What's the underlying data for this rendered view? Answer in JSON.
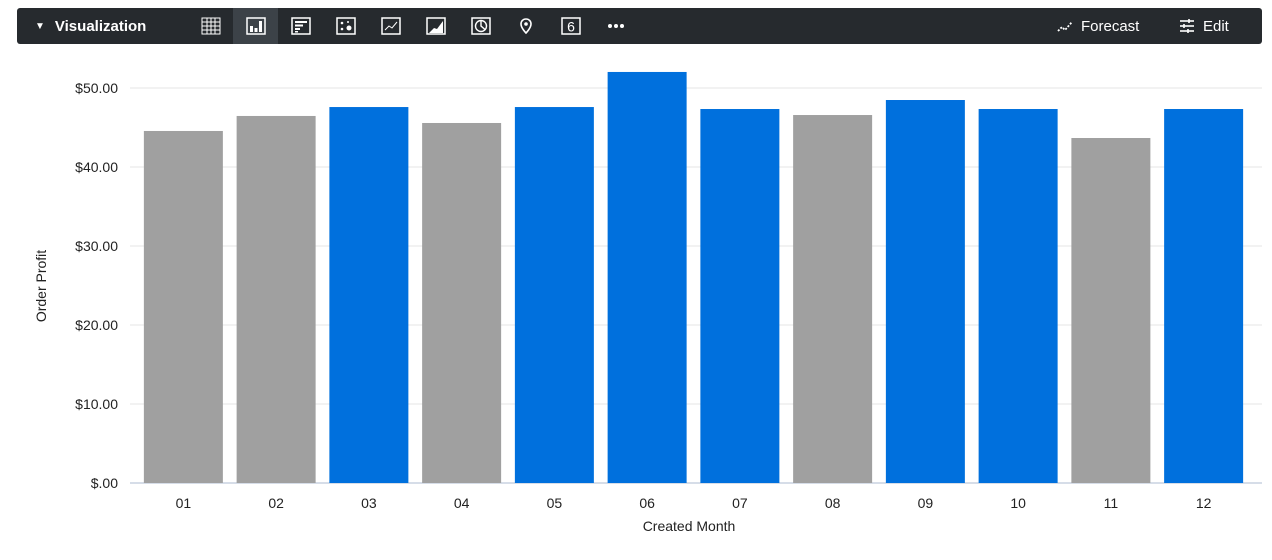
{
  "toolbar": {
    "title": "Visualization",
    "icons": [
      "table-icon",
      "column-chart-icon",
      "bar-chart-icon",
      "scatter-icon",
      "line-chart-icon",
      "area-chart-icon",
      "pie-chart-icon",
      "map-pin-icon",
      "single-value-icon",
      "more-icon"
    ],
    "active_icon": "column-chart-icon",
    "single_value_glyph": "6",
    "more_glyph": "•••",
    "forecast_label": "Forecast",
    "edit_label": "Edit"
  },
  "chart_data": {
    "type": "bar",
    "xlabel": "Created Month",
    "ylabel": "Order Profit",
    "categories": [
      "01",
      "02",
      "03",
      "04",
      "05",
      "06",
      "07",
      "08",
      "09",
      "10",
      "11",
      "12"
    ],
    "values": [
      44.56,
      46.46,
      47.59,
      45.57,
      47.59,
      52.03,
      47.34,
      46.58,
      48.48,
      47.34,
      43.67,
      47.34
    ],
    "bar_colors": [
      "#a0a0a0",
      "#a0a0a0",
      "#0070dd",
      "#a0a0a0",
      "#0070dd",
      "#0070dd",
      "#0070dd",
      "#a0a0a0",
      "#0070dd",
      "#0070dd",
      "#a0a0a0",
      "#0070dd"
    ],
    "yticks": [
      "$.00",
      "$10.00",
      "$20.00",
      "$30.00",
      "$40.00",
      "$50.00"
    ],
    "ylim": [
      0,
      52
    ],
    "grid": true,
    "legend": "none"
  }
}
